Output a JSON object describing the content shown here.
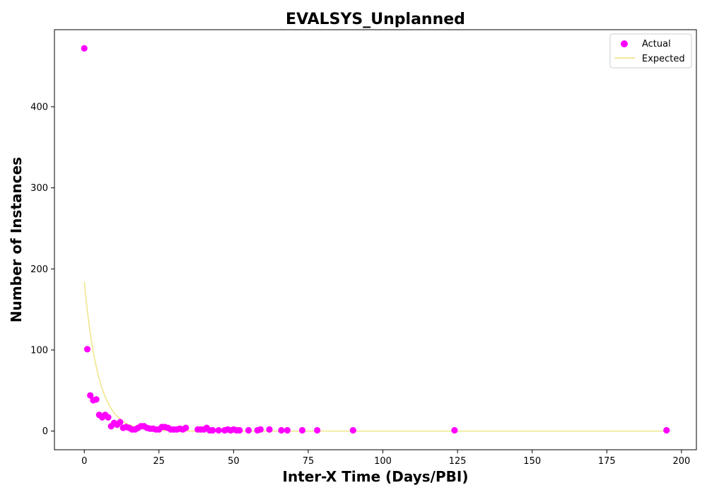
{
  "chart_data": {
    "type": "scatter",
    "title": "EVALSYS_Unplanned",
    "xlabel": "Inter-X Time (Days/PBI)",
    "ylabel": "Number of Instances",
    "xlim": [
      -10,
      205
    ],
    "ylim": [
      -23,
      495
    ],
    "x_ticks": [
      0,
      25,
      50,
      75,
      100,
      125,
      150,
      175,
      200
    ],
    "y_ticks": [
      0,
      100,
      200,
      300,
      400
    ],
    "grid": false,
    "legend_position": "top-right",
    "legend": [
      "Actual",
      "Expected"
    ],
    "colors": {
      "actual": "#ff00ff",
      "expected": "#f0e68c"
    },
    "series": [
      {
        "name": "Actual",
        "kind": "scatter",
        "points": [
          [
            0,
            472
          ],
          [
            1,
            101
          ],
          [
            2,
            44
          ],
          [
            3,
            38
          ],
          [
            4,
            39
          ],
          [
            5,
            20
          ],
          [
            6,
            17
          ],
          [
            7,
            20
          ],
          [
            8,
            17
          ],
          [
            9,
            6
          ],
          [
            10,
            10
          ],
          [
            11,
            8
          ],
          [
            12,
            11
          ],
          [
            13,
            4
          ],
          [
            14,
            5
          ],
          [
            15,
            4
          ],
          [
            16,
            2
          ],
          [
            17,
            2
          ],
          [
            18,
            4
          ],
          [
            19,
            6
          ],
          [
            20,
            6
          ],
          [
            21,
            4
          ],
          [
            22,
            3
          ],
          [
            23,
            3
          ],
          [
            24,
            2
          ],
          [
            25,
            2
          ],
          [
            26,
            5
          ],
          [
            27,
            5
          ],
          [
            28,
            4
          ],
          [
            29,
            2
          ],
          [
            30,
            2
          ],
          [
            31,
            2
          ],
          [
            32,
            3
          ],
          [
            33,
            2
          ],
          [
            34,
            4
          ],
          [
            38,
            2
          ],
          [
            39,
            2
          ],
          [
            40,
            2
          ],
          [
            41,
            4
          ],
          [
            42,
            1
          ],
          [
            43,
            1
          ],
          [
            45,
            1
          ],
          [
            47,
            1
          ],
          [
            48,
            2
          ],
          [
            49,
            1
          ],
          [
            50,
            2
          ],
          [
            51,
            1
          ],
          [
            52,
            1
          ],
          [
            55,
            1
          ],
          [
            58,
            1
          ],
          [
            59,
            2
          ],
          [
            62,
            2
          ],
          [
            66,
            1
          ],
          [
            68,
            1
          ],
          [
            73,
            1
          ],
          [
            78,
            1
          ],
          [
            90,
            1
          ],
          [
            124,
            1
          ],
          [
            195,
            1
          ]
        ]
      },
      {
        "name": "Expected",
        "kind": "line",
        "model": "exponential",
        "y0": 184,
        "decay_rate": 0.21,
        "x_range": [
          0,
          195
        ]
      }
    ]
  }
}
